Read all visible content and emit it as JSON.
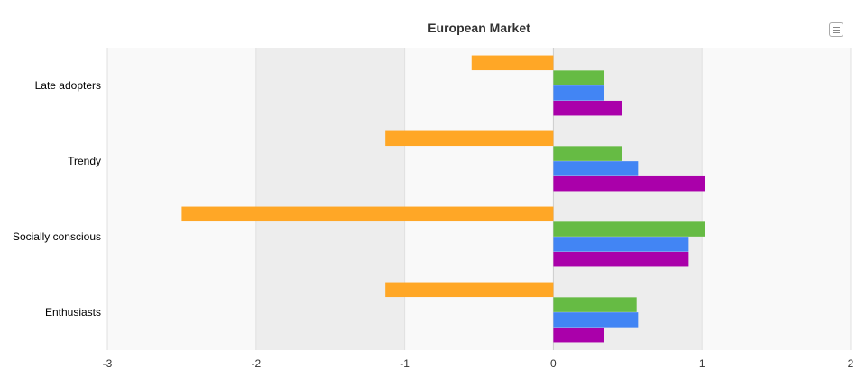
{
  "chart_data": {
    "type": "bar",
    "orientation": "horizontal",
    "title": "European Market",
    "categories": [
      "Late adopters",
      "Trendy",
      "Socially conscious",
      "Enthusiasts"
    ],
    "series": [
      {
        "color": "#FFA726",
        "values": [
          -0.55,
          -1.13,
          -2.5,
          -1.13
        ]
      },
      {
        "color": "#66BB44",
        "values": [
          0.34,
          0.46,
          1.02,
          0.56
        ]
      },
      {
        "color": "#4285F4",
        "values": [
          0.34,
          0.57,
          0.91,
          0.57
        ]
      },
      {
        "color": "#AA00AA",
        "values": [
          0.46,
          1.02,
          0.91,
          0.34
        ]
      }
    ],
    "xlim": [
      -3,
      2
    ],
    "x_ticks": [
      "-3",
      "-2",
      "-1",
      "0",
      "1",
      "2"
    ],
    "grid": true,
    "legend": "none"
  },
  "toolbar": {
    "menu_icon": "menu-icon"
  }
}
